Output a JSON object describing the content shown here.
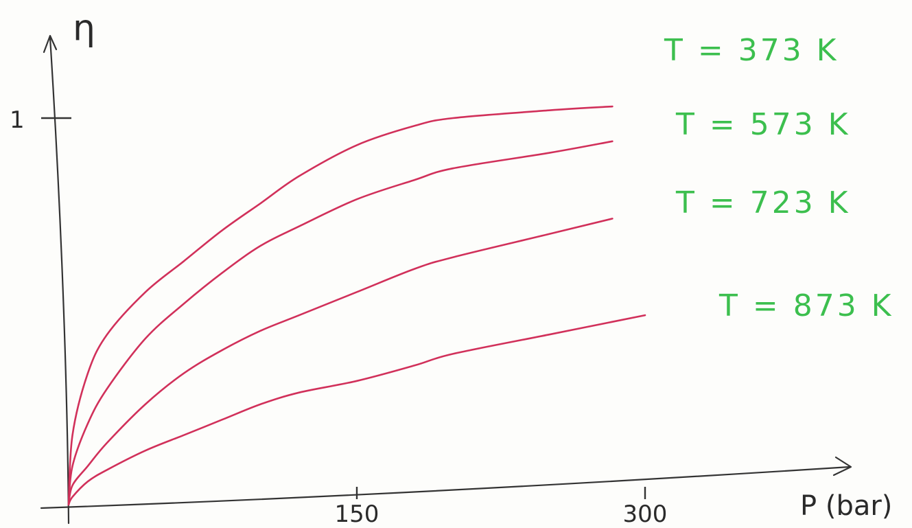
{
  "chart_data": {
    "type": "line",
    "title": "",
    "xlabel": "P (bar)",
    "ylabel": "η",
    "xlim": [
      0,
      300
    ],
    "ylim": [
      0,
      1
    ],
    "x_ticks": [
      {
        "value": 150,
        "label": "150"
      },
      {
        "value": 300,
        "label": "300"
      }
    ],
    "y_ticks": [
      {
        "value": 1,
        "label": "1"
      }
    ],
    "grid": false,
    "legend": "inline-right",
    "series": [
      {
        "name": "T = 373 K",
        "color": "#d1305a",
        "label_color": "#3cbf4e",
        "x": [
          0,
          2,
          10,
          20,
          40,
          60,
          80,
          100,
          120,
          150,
          180,
          200,
          250,
          283
        ],
        "y": [
          0,
          0.18,
          0.34,
          0.44,
          0.55,
          0.63,
          0.71,
          0.78,
          0.85,
          0.93,
          0.98,
          1.0,
          1.02,
          1.03
        ]
      },
      {
        "name": "T = 573 K",
        "color": "#d1305a",
        "label_color": "#3cbf4e",
        "x": [
          0,
          2,
          10,
          20,
          40,
          60,
          80,
          100,
          120,
          150,
          180,
          200,
          250,
          283
        ],
        "y": [
          0,
          0.1,
          0.21,
          0.3,
          0.43,
          0.52,
          0.6,
          0.67,
          0.72,
          0.79,
          0.84,
          0.87,
          0.91,
          0.94
        ]
      },
      {
        "name": "T = 723 K",
        "color": "#d1305a",
        "label_color": "#3cbf4e",
        "x": [
          0,
          2,
          10,
          20,
          40,
          60,
          80,
          100,
          120,
          150,
          180,
          200,
          250,
          283
        ],
        "y": [
          0,
          0.05,
          0.1,
          0.16,
          0.26,
          0.34,
          0.4,
          0.45,
          0.49,
          0.55,
          0.61,
          0.64,
          0.7,
          0.74
        ]
      },
      {
        "name": "T = 873 K",
        "color": "#d1305a",
        "label_color": "#3cbf4e",
        "x": [
          0,
          2,
          10,
          20,
          40,
          60,
          80,
          100,
          120,
          150,
          180,
          200,
          250,
          300
        ],
        "y": [
          0,
          0.02,
          0.06,
          0.09,
          0.14,
          0.18,
          0.22,
          0.26,
          0.29,
          0.32,
          0.36,
          0.39,
          0.44,
          0.49
        ]
      }
    ]
  }
}
